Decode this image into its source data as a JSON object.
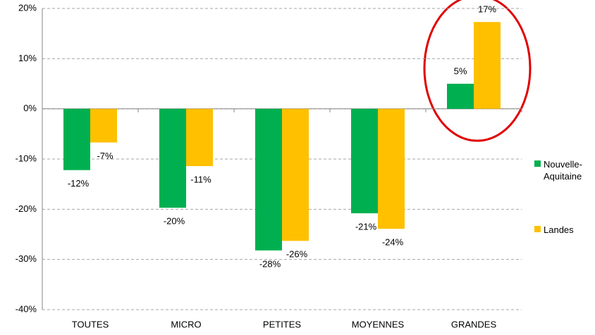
{
  "chart_data": {
    "type": "bar",
    "categories": [
      "TOUTES",
      "MICRO",
      "PETITES",
      "MOYENNES",
      "GRANDES"
    ],
    "series": [
      {
        "name": "Nouvelle-Aquitaine",
        "color": "#00b050",
        "values": [
          -12.2,
          -19.7,
          -28.2,
          -20.8,
          5.0
        ],
        "value_labels": [
          "-12%",
          "-20%",
          "-28%",
          "-21%",
          "5%"
        ]
      },
      {
        "name": "Landes",
        "color": "#ffc000",
        "values": [
          -6.7,
          -11.4,
          -26.3,
          -23.9,
          17.3
        ],
        "value_labels": [
          "-7%",
          "-11%",
          "-26%",
          "-24%",
          "17%"
        ]
      }
    ],
    "ylim": [
      -40,
      20
    ],
    "yticks": [
      {
        "value": -40,
        "label": "-40%"
      },
      {
        "value": -30,
        "label": "-30%"
      },
      {
        "value": -20,
        "label": "-20%"
      },
      {
        "value": -10,
        "label": "-10%"
      },
      {
        "value": 0,
        "label": "0%"
      },
      {
        "value": 10,
        "label": "10%"
      },
      {
        "value": 20,
        "label": "20%"
      }
    ],
    "grid": true,
    "legend": "right"
  }
}
